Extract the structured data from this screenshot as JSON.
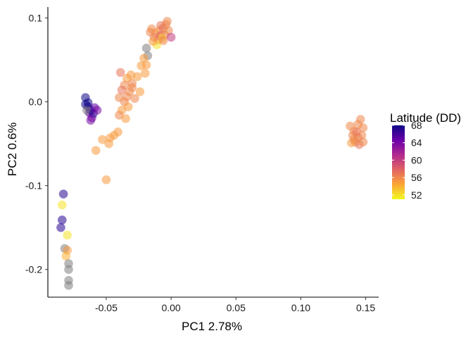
{
  "chart_data": {
    "type": "scatter",
    "xlabel": "PC1 2.78%",
    "ylabel": "PC2 0.6%",
    "xlim": [
      -0.095,
      0.16
    ],
    "ylim": [
      -0.233,
      0.113
    ],
    "x_ticks": [
      {
        "value": -0.05,
        "label": "-0.05"
      },
      {
        "value": 0.0,
        "label": "0.00"
      },
      {
        "value": 0.05,
        "label": "0.05"
      },
      {
        "value": 0.1,
        "label": "0.10"
      },
      {
        "value": 0.15,
        "label": "0.15"
      }
    ],
    "y_ticks": [
      {
        "value": 0.1,
        "label": "0.1"
      },
      {
        "value": 0.0,
        "label": "0.0"
      },
      {
        "value": -0.1,
        "label": "-0.1"
      },
      {
        "value": -0.2,
        "label": "-0.2"
      }
    ],
    "grid": false,
    "legend": {
      "title": "Latitude (DD)",
      "placement": "right",
      "type": "colorbar",
      "range": [
        51,
        68
      ],
      "ticks": [
        {
          "value": 68,
          "label": "68"
        },
        {
          "value": 64,
          "label": "64"
        },
        {
          "value": 60,
          "label": "60"
        },
        {
          "value": 56,
          "label": "56"
        },
        {
          "value": 52,
          "label": "52"
        }
      ]
    },
    "colorscale": [
      "#f0f921",
      "#fca636",
      "#e16462",
      "#b12a90",
      "#6a00a8",
      "#0d0887"
    ],
    "na_color": "#808080",
    "point_alpha": 0.55,
    "points": [
      {
        "x": -0.009,
        "y": 0.085,
        "lat": 56
      },
      {
        "x": -0.006,
        "y": 0.088,
        "lat": 57
      },
      {
        "x": -0.012,
        "y": 0.082,
        "lat": 55
      },
      {
        "x": -0.004,
        "y": 0.092,
        "lat": 56
      },
      {
        "x": -0.008,
        "y": 0.079,
        "lat": 58
      },
      {
        "x": -0.015,
        "y": 0.087,
        "lat": 56
      },
      {
        "x": -0.01,
        "y": 0.074,
        "lat": 57
      },
      {
        "x": -0.005,
        "y": 0.08,
        "lat": 56
      },
      {
        "x": -0.002,
        "y": 0.085,
        "lat": 56
      },
      {
        "x": -0.007,
        "y": 0.076,
        "lat": 53
      },
      {
        "x": -0.011,
        "y": 0.068,
        "lat": 52
      },
      {
        "x": -0.013,
        "y": 0.077,
        "lat": 57
      },
      {
        "x": -0.003,
        "y": 0.096,
        "lat": 56
      },
      {
        "x": 0.0,
        "y": 0.077,
        "lat": 60
      },
      {
        "x": -0.008,
        "y": 0.091,
        "lat": 57
      },
      {
        "x": -0.016,
        "y": 0.083,
        "lat": 56
      },
      {
        "x": -0.006,
        "y": 0.073,
        "lat": 56
      },
      {
        "x": -0.014,
        "y": 0.072,
        "lat": 55
      },
      {
        "x": -0.019,
        "y": 0.064,
        "lat": null
      },
      {
        "x": -0.018,
        "y": 0.055,
        "lat": null
      },
      {
        "x": -0.021,
        "y": 0.052,
        "lat": 55
      },
      {
        "x": -0.019,
        "y": 0.044,
        "lat": 55
      },
      {
        "x": -0.023,
        "y": 0.043,
        "lat": 55
      },
      {
        "x": -0.02,
        "y": 0.034,
        "lat": 55
      },
      {
        "x": -0.026,
        "y": 0.03,
        "lat": 55
      },
      {
        "x": -0.031,
        "y": 0.032,
        "lat": 55
      },
      {
        "x": -0.034,
        "y": 0.028,
        "lat": 55
      },
      {
        "x": -0.039,
        "y": 0.035,
        "lat": 57
      },
      {
        "x": -0.036,
        "y": 0.02,
        "lat": 56
      },
      {
        "x": -0.032,
        "y": 0.012,
        "lat": 56
      },
      {
        "x": -0.038,
        "y": 0.014,
        "lat": 57
      },
      {
        "x": -0.03,
        "y": 0.017,
        "lat": 56
      },
      {
        "x": -0.034,
        "y": 0.006,
        "lat": 56
      },
      {
        "x": -0.028,
        "y": 0.004,
        "lat": 56
      },
      {
        "x": -0.036,
        "y": 0.0,
        "lat": 56
      },
      {
        "x": -0.04,
        "y": 0.005,
        "lat": 56
      },
      {
        "x": -0.033,
        "y": -0.006,
        "lat": 55
      },
      {
        "x": -0.038,
        "y": -0.01,
        "lat": 55
      },
      {
        "x": -0.04,
        "y": -0.016,
        "lat": 56
      },
      {
        "x": -0.03,
        "y": 0.022,
        "lat": 56
      },
      {
        "x": -0.024,
        "y": 0.012,
        "lat": 55
      },
      {
        "x": -0.035,
        "y": -0.02,
        "lat": 55
      },
      {
        "x": -0.044,
        "y": -0.04,
        "lat": 55
      },
      {
        "x": -0.048,
        "y": -0.05,
        "lat": 55
      },
      {
        "x": -0.047,
        "y": -0.043,
        "lat": 55
      },
      {
        "x": -0.053,
        "y": -0.045,
        "lat": 55
      },
      {
        "x": -0.058,
        "y": -0.058,
        "lat": 55
      },
      {
        "x": -0.041,
        "y": -0.036,
        "lat": 55
      },
      {
        "x": -0.05,
        "y": -0.093,
        "lat": 55
      },
      {
        "x": -0.066,
        "y": 0.005,
        "lat": 68
      },
      {
        "x": -0.066,
        "y": -0.003,
        "lat": 68
      },
      {
        "x": -0.064,
        "y": -0.006,
        "lat": 67
      },
      {
        "x": -0.062,
        "y": -0.01,
        "lat": 68
      },
      {
        "x": -0.059,
        "y": -0.007,
        "lat": 65
      },
      {
        "x": -0.063,
        "y": -0.013,
        "lat": 65
      },
      {
        "x": -0.061,
        "y": -0.019,
        "lat": 64
      },
      {
        "x": -0.065,
        "y": -0.01,
        "lat": null
      },
      {
        "x": -0.06,
        "y": -0.014,
        "lat": 67
      },
      {
        "x": -0.062,
        "y": -0.022,
        "lat": 64
      },
      {
        "x": -0.057,
        "y": -0.01,
        "lat": 64
      },
      {
        "x": -0.064,
        "y": -0.001,
        "lat": 68
      },
      {
        "x": -0.083,
        "y": -0.11,
        "lat": 67
      },
      {
        "x": -0.084,
        "y": -0.123,
        "lat": 52
      },
      {
        "x": -0.084,
        "y": -0.141,
        "lat": 67
      },
      {
        "x": -0.085,
        "y": -0.15,
        "lat": 67
      },
      {
        "x": -0.08,
        "y": -0.159,
        "lat": 52
      },
      {
        "x": -0.082,
        "y": -0.175,
        "lat": null
      },
      {
        "x": -0.08,
        "y": -0.177,
        "lat": 55
      },
      {
        "x": -0.081,
        "y": -0.184,
        "lat": 54
      },
      {
        "x": -0.079,
        "y": -0.193,
        "lat": null
      },
      {
        "x": -0.079,
        "y": -0.2,
        "lat": null
      },
      {
        "x": -0.079,
        "y": -0.213,
        "lat": null
      },
      {
        "x": -0.079,
        "y": -0.219,
        "lat": null
      },
      {
        "x": 0.138,
        "y": -0.029,
        "lat": 56
      },
      {
        "x": 0.141,
        "y": -0.035,
        "lat": 56
      },
      {
        "x": 0.146,
        "y": -0.021,
        "lat": 56
      },
      {
        "x": 0.144,
        "y": -0.027,
        "lat": 56
      },
      {
        "x": 0.148,
        "y": -0.031,
        "lat": 56
      },
      {
        "x": 0.14,
        "y": -0.04,
        "lat": 56
      },
      {
        "x": 0.144,
        "y": -0.043,
        "lat": 57
      },
      {
        "x": 0.147,
        "y": -0.04,
        "lat": 56
      },
      {
        "x": 0.142,
        "y": -0.048,
        "lat": 56
      },
      {
        "x": 0.139,
        "y": -0.049,
        "lat": 55
      },
      {
        "x": 0.145,
        "y": -0.051,
        "lat": 57
      },
      {
        "x": 0.148,
        "y": -0.048,
        "lat": 56
      },
      {
        "x": 0.143,
        "y": -0.036,
        "lat": 57
      },
      {
        "x": 0.141,
        "y": -0.045,
        "lat": 56
      }
    ]
  }
}
